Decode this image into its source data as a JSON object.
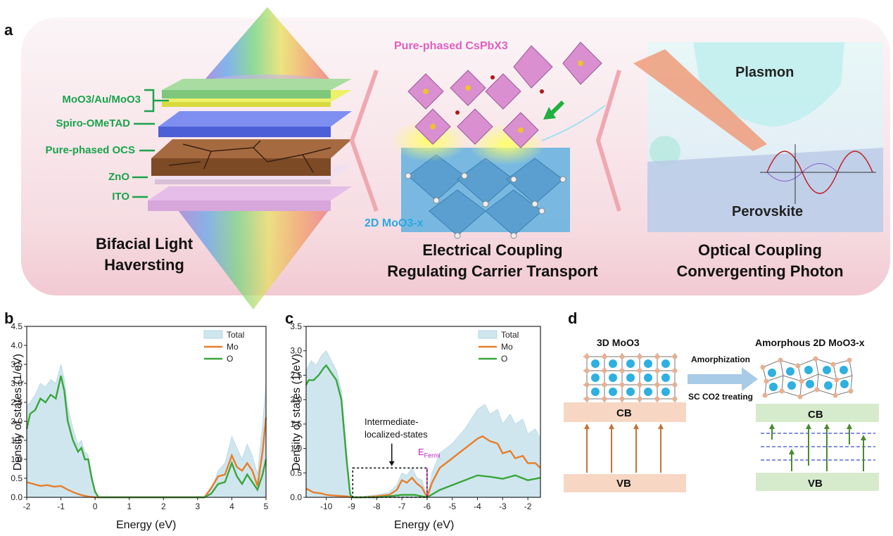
{
  "panel_a": {
    "letter": "a",
    "layers": [
      "MoO3/Au/MoO3",
      "Spiro-OMeTAD",
      "Pure-phased OCS",
      "ZnO",
      "ITO"
    ],
    "left_caption": [
      "Bifacial Light",
      "Haversting"
    ],
    "mid_top_label": "Pure-phased CsPbX3",
    "mid_bottom_label": "2D MoO3-x",
    "mid_caption": [
      "Electrical Coupling",
      "Regulating Carrier Transport"
    ],
    "right_top_label": "Plasmon",
    "right_bottom_label": "Perovskite",
    "right_caption": [
      "Optical Coupling",
      "Convergenting Photon"
    ]
  },
  "panel_b": {
    "letter": "b",
    "ylabel": "Density of states (1/eV)",
    "xlabel": "Energy (eV)"
  },
  "panel_c": {
    "letter": "c",
    "ylabel": "Density of states (1/eV)",
    "xlabel": "Energy (eV)",
    "annotation": [
      "Intermediate-",
      "localized-states"
    ],
    "fermi_label": "E",
    "fermi_sub": "Fermi"
  },
  "panel_d": {
    "letter": "d",
    "left_title": "3D MoO3",
    "right_title": "Amorphous 2D MoO3-x",
    "arrow_top": "Amorphization",
    "arrow_bottom": "SC CO2 treating",
    "cb": "CB",
    "vb": "VB"
  },
  "chart_data": [
    {
      "type": "area",
      "panel": "b",
      "xlabel": "Energy (eV)",
      "ylabel": "Density of states (1/eV)",
      "xlim": [
        -2,
        5
      ],
      "ylim": [
        0,
        4.5
      ],
      "xticks": [
        -2,
        -1,
        0,
        1,
        2,
        3,
        4,
        5
      ],
      "yticks": [
        0.0,
        0.5,
        1.0,
        1.5,
        2.0,
        2.5,
        3.0,
        3.5,
        4.0,
        4.5
      ],
      "legend": [
        "Total",
        "Mo",
        "O"
      ],
      "legend_position": "top-right",
      "colors": {
        "Total": "#cfe6ef",
        "Mo": "#e87d2a",
        "O": "#3aa63a"
      },
      "series": [
        {
          "name": "Total",
          "x": [
            -2,
            -1.9,
            -1.75,
            -1.6,
            -1.45,
            -1.3,
            -1.15,
            -1.0,
            -0.9,
            -0.8,
            -0.65,
            -0.5,
            -0.4,
            -0.3,
            -0.2,
            -0.1,
            0.0,
            0.1,
            0.2,
            0.5,
            1,
            2,
            3.2,
            3.4,
            3.6,
            3.8,
            4.0,
            4.15,
            4.3,
            4.45,
            4.6,
            4.75,
            4.9,
            5.0
          ],
          "y": [
            2.4,
            2.5,
            2.7,
            3.0,
            2.9,
            3.1,
            3.0,
            3.5,
            3.1,
            2.4,
            1.8,
            1.4,
            1.5,
            1.2,
            1.1,
            0.6,
            0.2,
            0.0,
            0.0,
            0,
            0,
            0,
            0.0,
            0.2,
            0.7,
            0.9,
            1.6,
            1.3,
            1.0,
            1.4,
            1.1,
            0.6,
            1.9,
            3.0
          ]
        },
        {
          "name": "Mo",
          "x": [
            -2,
            -1.8,
            -1.6,
            -1.4,
            -1.2,
            -1.0,
            -0.8,
            -0.6,
            -0.4,
            -0.2,
            0.0,
            0.2,
            1,
            2,
            3.2,
            3.4,
            3.6,
            3.8,
            4.0,
            4.15,
            4.3,
            4.45,
            4.6,
            4.75,
            4.9,
            5.0
          ],
          "y": [
            0.4,
            0.35,
            0.3,
            0.32,
            0.28,
            0.3,
            0.2,
            0.12,
            0.06,
            0.02,
            0.0,
            0.0,
            0,
            0,
            0.0,
            0.25,
            0.55,
            0.6,
            1.1,
            0.8,
            0.7,
            0.9,
            0.7,
            0.3,
            1.2,
            2.1
          ]
        },
        {
          "name": "O",
          "x": [
            -2,
            -1.9,
            -1.75,
            -1.6,
            -1.45,
            -1.3,
            -1.15,
            -1.0,
            -0.9,
            -0.8,
            -0.65,
            -0.5,
            -0.4,
            -0.3,
            -0.2,
            -0.1,
            0.0,
            0.1,
            0.2,
            1,
            2,
            3.2,
            3.4,
            3.6,
            3.8,
            4.0,
            4.15,
            4.3,
            4.45,
            4.6,
            4.75,
            4.9,
            5.0
          ],
          "y": [
            1.8,
            2.2,
            2.3,
            2.6,
            2.5,
            2.7,
            2.6,
            3.2,
            2.8,
            2.0,
            1.5,
            1.2,
            1.3,
            1.0,
            1.0,
            0.5,
            0.15,
            0.0,
            0.0,
            0,
            0,
            0.0,
            0.1,
            0.35,
            0.4,
            0.9,
            0.55,
            0.35,
            0.6,
            0.4,
            0.2,
            0.6,
            1.0
          ]
        }
      ]
    },
    {
      "type": "area",
      "panel": "c",
      "xlabel": "Energy (eV)",
      "ylabel": "Density of states (1/eV)",
      "xlim": [
        -10.8,
        -1.5
      ],
      "ylim": [
        0,
        3.5
      ],
      "xticks": [
        -10,
        -9,
        -8,
        -7,
        -6,
        -5,
        -4,
        -3,
        -2
      ],
      "yticks": [
        0.0,
        0.5,
        1.0,
        1.5,
        2.0,
        2.5,
        3.0,
        3.5
      ],
      "legend": [
        "Total",
        "Mo",
        "O"
      ],
      "legend_position": "top-right",
      "colors": {
        "Total": "#cfe6ef",
        "Mo": "#e87d2a",
        "O": "#3aa63a"
      },
      "series": [
        {
          "name": "Total",
          "x": [
            -10.8,
            -10.6,
            -10.4,
            -10.2,
            -10.0,
            -9.8,
            -9.6,
            -9.4,
            -9.2,
            -9.05,
            -8.95,
            -8.5,
            -8.0,
            -7.5,
            -7.2,
            -7.0,
            -6.8,
            -6.6,
            -6.4,
            -6.2,
            -6.0,
            -5.8,
            -5.5,
            -5.0,
            -4.5,
            -4.0,
            -3.7,
            -3.5,
            -3.2,
            -3.0,
            -2.7,
            -2.5,
            -2.2,
            -2.0,
            -1.7,
            -1.5
          ],
          "y": [
            2.6,
            2.8,
            2.7,
            2.9,
            3.0,
            2.8,
            2.6,
            2.2,
            1.0,
            0.1,
            0.0,
            0.02,
            0.05,
            0.1,
            0.25,
            0.5,
            0.45,
            0.6,
            0.4,
            0.35,
            0.0,
            0.5,
            0.9,
            1.1,
            1.4,
            1.8,
            1.9,
            1.7,
            1.8,
            1.5,
            1.7,
            1.5,
            1.6,
            1.3,
            1.4,
            1.2
          ]
        },
        {
          "name": "Mo",
          "x": [
            -10.8,
            -10.5,
            -10.2,
            -10.0,
            -9.8,
            -9.5,
            -9.2,
            -9.0,
            -8.8,
            -8.5,
            -8.0,
            -7.5,
            -7.2,
            -7.0,
            -6.8,
            -6.6,
            -6.4,
            -6.2,
            -6.0,
            -5.8,
            -5.5,
            -5.0,
            -4.5,
            -4.0,
            -3.8,
            -3.5,
            -3.2,
            -3.0,
            -2.7,
            -2.5,
            -2.2,
            -2.0,
            -1.7,
            -1.5
          ],
          "y": [
            0.18,
            0.1,
            0.08,
            0.05,
            0.04,
            0.03,
            0.02,
            0.0,
            0.0,
            0.0,
            0.02,
            0.05,
            0.15,
            0.35,
            0.3,
            0.4,
            0.28,
            0.2,
            0.0,
            0.3,
            0.6,
            0.8,
            1.0,
            1.2,
            1.25,
            1.15,
            1.1,
            0.9,
            0.95,
            0.8,
            0.85,
            0.7,
            0.7,
            0.6
          ]
        },
        {
          "name": "O",
          "x": [
            -10.8,
            -10.7,
            -10.5,
            -10.3,
            -10.1,
            -10.0,
            -9.8,
            -9.6,
            -9.4,
            -9.2,
            -9.05,
            -8.95,
            -8.5,
            -8.0,
            -7.5,
            -7.0,
            -6.5,
            -6.0,
            -5.5,
            -5.0,
            -4.5,
            -4.0,
            -3.5,
            -3.0,
            -2.5,
            -2.0,
            -1.5
          ],
          "y": [
            2.3,
            2.4,
            2.4,
            2.5,
            2.65,
            2.7,
            2.55,
            2.4,
            2.0,
            0.8,
            0.05,
            0.0,
            0.0,
            0.0,
            0.02,
            0.05,
            0.05,
            0.0,
            0.15,
            0.25,
            0.35,
            0.45,
            0.42,
            0.38,
            0.45,
            0.35,
            0.4
          ]
        }
      ]
    }
  ]
}
